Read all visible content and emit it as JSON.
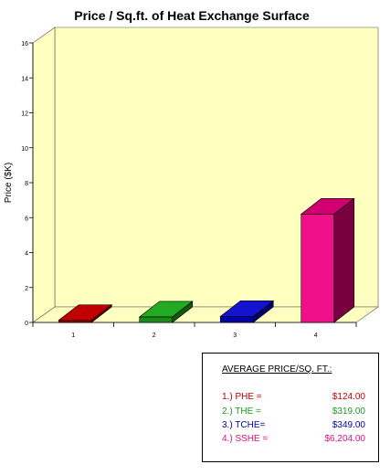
{
  "chart_data": {
    "type": "bar",
    "title": "Price / Sq.ft. of Heat Exchange Surface",
    "ylabel": "Price ($K)",
    "xlabel": "",
    "categories": [
      "1",
      "2",
      "3",
      "4"
    ],
    "values": [
      0.124,
      0.319,
      0.349,
      6.204
    ],
    "ylim": [
      0,
      16
    ],
    "yticks": [
      "0",
      "2",
      "4",
      "6",
      "8",
      "10",
      "12",
      "14",
      "16"
    ],
    "grid": false,
    "plot_background": "#ffffc0",
    "bar_colors": [
      {
        "front": "#8b0000",
        "top": "#c00000",
        "side": "#5a0000"
      },
      {
        "front": "#1a8a1a",
        "top": "#22aa22",
        "side": "#0f5a0f"
      },
      {
        "front": "#0000aa",
        "top": "#1414d0",
        "side": "#00006a"
      },
      {
        "front": "#f0108a",
        "top": "#d00070",
        "side": "#780040"
      }
    ]
  },
  "legend": {
    "title": "AVERAGE PRICE/SQ. FT.:",
    "rows": [
      {
        "label": "1.) PHE =",
        "value": "$124.00",
        "color": "#c00000"
      },
      {
        "label": "2.) THE =",
        "value": "$319.00",
        "color": "#1a9a1a"
      },
      {
        "label": "3.) TCHE=",
        "value": "$349.00",
        "color": "#0000aa"
      },
      {
        "label": "4.) SSHE =",
        "value": "$6,204.00",
        "color": "#e0107a"
      }
    ]
  }
}
